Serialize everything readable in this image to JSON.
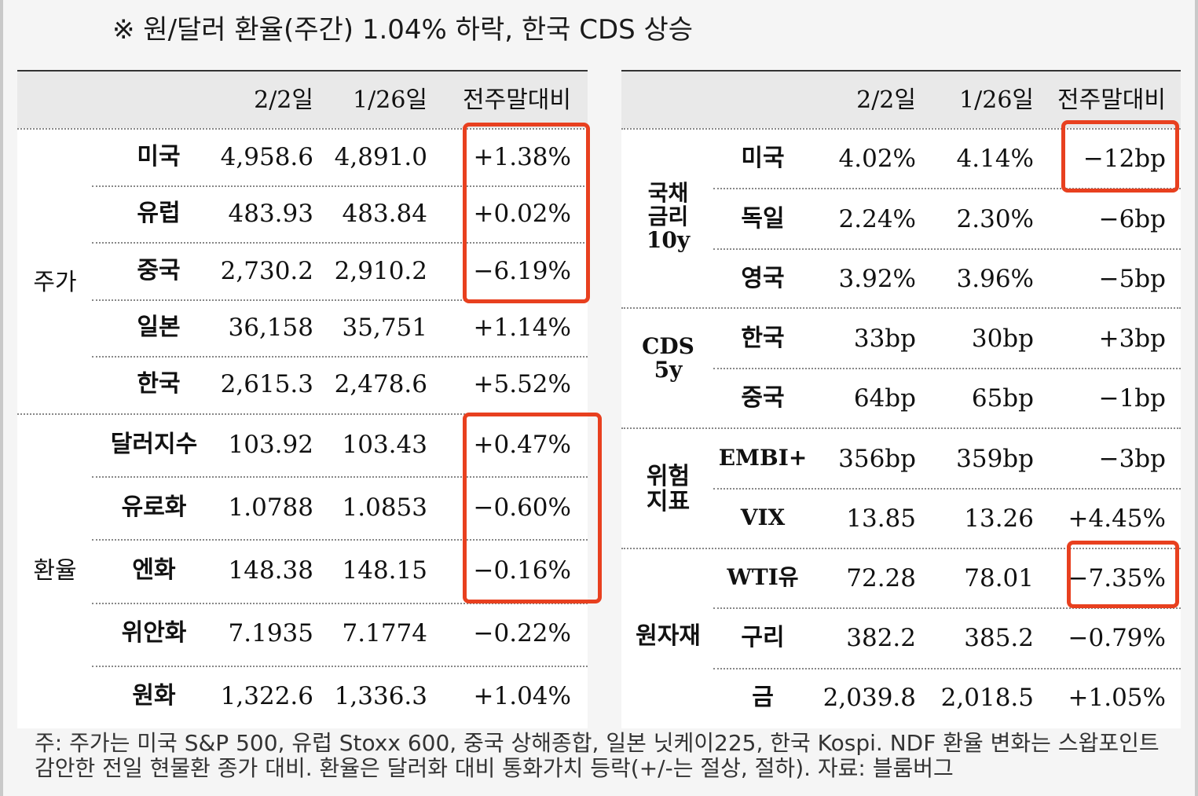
{
  "title": "※ 원/달러 환율(주간) 1.04% 하락, 한국 CDS 상승",
  "headers": {
    "c1": "2/2일",
    "c2": "1/26일",
    "c3": "전주말대비"
  },
  "left": {
    "groups": [
      {
        "label": "주가",
        "rows": [
          {
            "name": "미국",
            "v1": "4,958.6",
            "v2": "4,891.0",
            "chg": "+1.38%"
          },
          {
            "name": "유럽",
            "v1": "483.93",
            "v2": "483.84",
            "chg": "+0.02%"
          },
          {
            "name": "중국",
            "v1": "2,730.2",
            "v2": "2,910.2",
            "chg": "−6.19%"
          },
          {
            "name": "일본",
            "v1": "36,158",
            "v2": "35,751",
            "chg": "+1.14%"
          },
          {
            "name": "한국",
            "v1": "2,615.3",
            "v2": "2,478.6",
            "chg": "+5.52%"
          }
        ]
      },
      {
        "label": "환율",
        "rows": [
          {
            "name": "달러지수",
            "v1": "103.92",
            "v2": "103.43",
            "chg": "+0.47%"
          },
          {
            "name": "유로화",
            "v1": "1.0788",
            "v2": "1.0853",
            "chg": "−0.60%"
          },
          {
            "name": "엔화",
            "v1": "148.38",
            "v2": "148.15",
            "chg": "−0.16%"
          },
          {
            "name": "위안화",
            "v1": "7.1935",
            "v2": "7.1774",
            "chg": "−0.22%"
          },
          {
            "name": "원화",
            "v1": "1,322.6",
            "v2": "1,336.3",
            "chg": "+1.04%"
          }
        ]
      }
    ]
  },
  "right": {
    "groups": [
      {
        "label": [
          "국채",
          "금리",
          "10y"
        ],
        "rows": [
          {
            "name": "미국",
            "v1": "4.02%",
            "v2": "4.14%",
            "chg": "−12bp"
          },
          {
            "name": "독일",
            "v1": "2.24%",
            "v2": "2.30%",
            "chg": "−6bp"
          },
          {
            "name": "영국",
            "v1": "3.92%",
            "v2": "3.96%",
            "chg": "−5bp"
          }
        ]
      },
      {
        "label": [
          "CDS",
          "5y"
        ],
        "rows": [
          {
            "name": "한국",
            "v1": "33bp",
            "v2": "30bp",
            "chg": "+3bp"
          },
          {
            "name": "중국",
            "v1": "64bp",
            "v2": "65bp",
            "chg": "−1bp"
          }
        ]
      },
      {
        "label": [
          "위험",
          "지표"
        ],
        "rows": [
          {
            "name": "EMBI+",
            "v1": "356bp",
            "v2": "359bp",
            "chg": "−3bp"
          },
          {
            "name": "VIX",
            "v1": "13.85",
            "v2": "13.26",
            "chg": "+4.45%"
          }
        ]
      },
      {
        "label": [
          "원자재"
        ],
        "rows": [
          {
            "name": "WTI유",
            "v1": "72.28",
            "v2": "78.01",
            "chg": "−7.35%"
          },
          {
            "name": "구리",
            "v1": "382.2",
            "v2": "385.2",
            "chg": "−0.79%"
          },
          {
            "name": "금",
            "v1": "2,039.8",
            "v2": "2,018.5",
            "chg": "+1.05%"
          }
        ]
      }
    ]
  },
  "note": {
    "line1": "주: 주가는 미국 S&P 500, 유럽 Stoxx 600, 중국 상해종합, 일본 닛케이225, 한국 Kospi. NDF 환율 변화는 스왑포인트",
    "line2": "감안한 전일 현물환 종가 대비. 환율은 달러화 대비 통화가치 등락(+/-는 절상, 절하). 자료: 블룸버그"
  },
  "colors": {
    "highlight": "#e8401f",
    "header_bg": "#e9e9e9",
    "page_bg": "#f5f5f5"
  }
}
